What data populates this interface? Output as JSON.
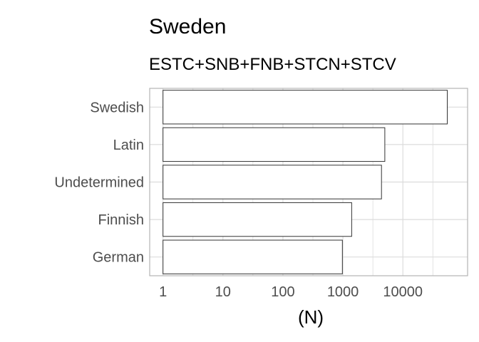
{
  "chart_data": {
    "type": "bar",
    "orientation": "horizontal",
    "title": "Sweden",
    "subtitle": "ESTC+SNB+FNB+STCN+STCV",
    "xlabel": "(N)",
    "ylabel": "",
    "x_scale": "log10",
    "xlim": [
      0.6,
      120000
    ],
    "x_ticks": [
      1,
      10,
      100,
      1000,
      10000
    ],
    "x_tick_labels": [
      "1",
      "10",
      "100",
      "1000",
      "10000"
    ],
    "categories": [
      "Swedish",
      "Latin",
      "Undetermined",
      "Finnish",
      "German"
    ],
    "values": [
      55000,
      5000,
      4400,
      1400,
      980
    ],
    "grid": true,
    "legend": "none",
    "colors": {
      "bar_fill": "#ffffff",
      "bar_stroke": "#333333",
      "grid": "#dcdcdc",
      "panel_border": "#b3b3b3"
    }
  }
}
